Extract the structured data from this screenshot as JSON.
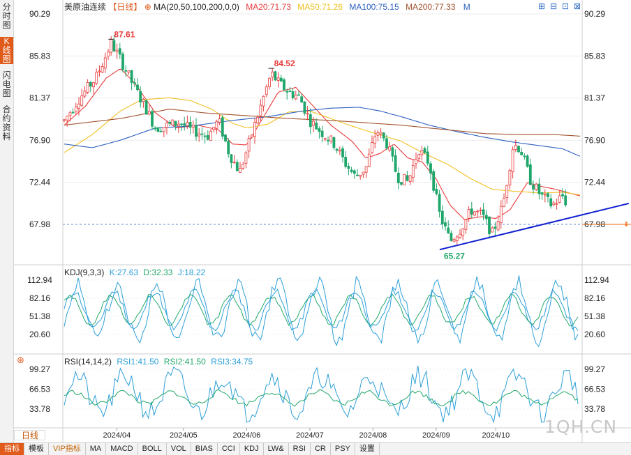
{
  "sidebar": {
    "tabs": [
      {
        "label": "分时图",
        "active": false
      },
      {
        "label": "K线图",
        "active": true
      },
      {
        "label": "闪电图",
        "active": false
      },
      {
        "label": "合约资料",
        "active": false
      }
    ]
  },
  "header": {
    "instrument": "美原油连续",
    "period": "【日线】",
    "ma_label": "MA(20,50,100,200,0,0)",
    "ma20": "MA20:71.73",
    "ma50": "MA50:71.26",
    "ma100": "MA100:75.15",
    "ma200": "MA200:77.33",
    "m_label": "M",
    "colors": {
      "ma20": "#e83b3b",
      "ma50": "#f0c020",
      "ma100": "#2b5fc0",
      "ma200": "#a0522d"
    }
  },
  "controls": {
    "icons": [
      "zoom-in-icon",
      "zoom-out-icon",
      "fit-icon",
      "close-icon"
    ]
  },
  "indicators": {
    "kdj": {
      "label": "KDJ(9,3,3)",
      "k": "K:27.63",
      "d": "D:32.33",
      "j": "J:18.22"
    },
    "rsi": {
      "label": "RSI(14,14,2)",
      "rsi1": "RSI1:41.50",
      "rsi2": "RSI2:41.50",
      "rsi3": "RSI3:34.75"
    }
  },
  "period_tag": "日线",
  "toolbar": {
    "items": [
      "指标",
      "模板",
      "VIP指标",
      "MA",
      "MACD",
      "BOLL",
      "VOL",
      "BIAS",
      "CCI",
      "KDJ",
      "LW&",
      "RSI",
      "CR",
      "PSY",
      "设置"
    ],
    "active_index": 0,
    "vip_index": 2
  },
  "watermark": "1QH.CN",
  "chart_data": [
    {
      "type": "candlestick",
      "title": "美原油连续 日线",
      "x_ticks": [
        "2024/04",
        "2024/05",
        "2024/06",
        "2024/07",
        "2024/08",
        "2024/09",
        "2024/10"
      ],
      "y_ticks": [
        "90.29",
        "85.83",
        "81.37",
        "76.90",
        "72.44",
        "67.98"
      ],
      "ylim": [
        63.5,
        91.5
      ],
      "current_price": 67.98,
      "annotations": [
        {
          "text": "87.61",
          "value": 87.61,
          "kind": "high",
          "date_index": 67
        },
        {
          "text": "84.52",
          "value": 84.52,
          "kind": "high",
          "date_index": 295
        },
        {
          "text": "65.27",
          "value": 65.27,
          "kind": "low",
          "date_index": 535
        }
      ],
      "trendline": {
        "from": {
          "i": 535,
          "v": 65.3
        },
        "to": {
          "i": 735,
          "v": 68.8
        }
      },
      "close_keypoints": [
        [
          0,
          79.0
        ],
        [
          20,
          81.2
        ],
        [
          45,
          83.5
        ],
        [
          60,
          86.0
        ],
        [
          67,
          87.2
        ],
        [
          80,
          85.5
        ],
        [
          100,
          82.5
        ],
        [
          115,
          80.5
        ],
        [
          130,
          78.2
        ],
        [
          150,
          78.5
        ],
        [
          165,
          78.8
        ],
        [
          180,
          78.0
        ],
        [
          205,
          77.4
        ],
        [
          220,
          79.0
        ],
        [
          235,
          75.5
        ],
        [
          250,
          73.5
        ],
        [
          265,
          77.0
        ],
        [
          280,
          80.5
        ],
        [
          295,
          84.0
        ],
        [
          305,
          83.0
        ],
        [
          320,
          82.0
        ],
        [
          335,
          81.5
        ],
        [
          350,
          79.0
        ],
        [
          370,
          77.5
        ],
        [
          385,
          76.5
        ],
        [
          400,
          74.5
        ],
        [
          415,
          73.0
        ],
        [
          430,
          74.0
        ],
        [
          445,
          78.0
        ],
        [
          460,
          76.5
        ],
        [
          475,
          73.0
        ],
        [
          490,
          72.5
        ],
        [
          505,
          76.0
        ],
        [
          520,
          74.5
        ],
        [
          535,
          69.0
        ],
        [
          550,
          66.2
        ],
        [
          565,
          67.5
        ],
        [
          580,
          69.5
        ],
        [
          595,
          69.0
        ],
        [
          610,
          67.0
        ],
        [
          625,
          70.0
        ],
        [
          640,
          76.5
        ],
        [
          650,
          76.0
        ],
        [
          665,
          72.5
        ],
        [
          680,
          71.0
        ],
        [
          695,
          70.0
        ],
        [
          710,
          71.0
        ],
        [
          725,
          69.0
        ],
        [
          735,
          67.8
        ]
      ],
      "ma_series": [
        {
          "name": "MA20",
          "value": 71.73,
          "points": [
            [
              0,
              78.5
            ],
            [
              30,
              80.5
            ],
            [
              60,
              83.5
            ],
            [
              80,
              84.5
            ],
            [
              100,
              83.0
            ],
            [
              130,
              79.8
            ],
            [
              160,
              78.2
            ],
            [
              190,
              78.5
            ],
            [
              220,
              78.0
            ],
            [
              240,
              76.5
            ],
            [
              260,
              76.4
            ],
            [
              285,
              79.5
            ],
            [
              305,
              82.0
            ],
            [
              330,
              82.5
            ],
            [
              355,
              80.5
            ],
            [
              380,
              78.5
            ],
            [
              410,
              76.8
            ],
            [
              430,
              75.0
            ],
            [
              450,
              75.5
            ],
            [
              470,
              76.5
            ],
            [
              490,
              75.0
            ],
            [
              510,
              74.6
            ],
            [
              530,
              72.8
            ],
            [
              550,
              70.0
            ],
            [
              570,
              68.5
            ],
            [
              595,
              68.8
            ],
            [
              615,
              68.6
            ],
            [
              635,
              69.5
            ],
            [
              660,
              72.4
            ],
            [
              680,
              72.0
            ],
            [
              700,
              71.7
            ],
            [
              725,
              71.2
            ],
            [
              735,
              71.0
            ]
          ]
        },
        {
          "name": "MA50",
          "value": 71.26,
          "points": [
            [
              0,
              75.6
            ],
            [
              40,
              77.5
            ],
            [
              80,
              80.0
            ],
            [
              110,
              81.2
            ],
            [
              150,
              81.4
            ],
            [
              180,
              81.1
            ],
            [
              210,
              80.2
            ],
            [
              240,
              78.7
            ],
            [
              260,
              78.2
            ],
            [
              290,
              78.6
            ],
            [
              320,
              79.9
            ],
            [
              350,
              80.0
            ],
            [
              380,
              79.2
            ],
            [
              410,
              78.4
            ],
            [
              440,
              77.7
            ],
            [
              480,
              76.8
            ],
            [
              510,
              75.6
            ],
            [
              545,
              74.4
            ],
            [
              580,
              72.8
            ],
            [
              610,
              71.7
            ],
            [
              640,
              71.5
            ],
            [
              680,
              71.3
            ],
            [
              710,
              71.4
            ],
            [
              735,
              71.1
            ]
          ]
        },
        {
          "name": "MA100",
          "value": 75.15,
          "points": [
            [
              0,
              76.5
            ],
            [
              40,
              76.1
            ],
            [
              80,
              76.9
            ],
            [
              130,
              78.2
            ],
            [
              180,
              78.4
            ],
            [
              240,
              79.0
            ],
            [
              290,
              79.4
            ],
            [
              340,
              80.0
            ],
            [
              380,
              80.3
            ],
            [
              420,
              80.4
            ],
            [
              450,
              80.0
            ],
            [
              480,
              79.4
            ],
            [
              520,
              78.5
            ],
            [
              560,
              77.8
            ],
            [
              600,
              77.2
            ],
            [
              640,
              76.7
            ],
            [
              680,
              76.3
            ],
            [
              710,
              76.0
            ],
            [
              735,
              75.2
            ]
          ]
        },
        {
          "name": "MA200",
          "value": 77.33,
          "points": [
            [
              0,
              78.5
            ],
            [
              80,
              79.2
            ],
            [
              150,
              80.2
            ],
            [
              200,
              79.8
            ],
            [
              260,
              79.5
            ],
            [
              320,
              79.2
            ],
            [
              380,
              79.0
            ],
            [
              440,
              78.7
            ],
            [
              480,
              78.5
            ],
            [
              520,
              78.2
            ],
            [
              560,
              77.9
            ],
            [
              600,
              77.6
            ],
            [
              650,
              77.5
            ],
            [
              700,
              77.5
            ],
            [
              735,
              77.33
            ]
          ]
        }
      ]
    },
    {
      "type": "line",
      "title": "KDJ(9,3,3)",
      "y_ticks": [
        "112.94",
        "82.16",
        "51.38",
        "20.60"
      ],
      "ylim": [
        -5,
        125
      ],
      "series": [
        {
          "name": "K",
          "value": 27.63
        },
        {
          "name": "D",
          "value": 32.33
        },
        {
          "name": "J",
          "value": 18.22
        }
      ]
    },
    {
      "type": "line",
      "title": "RSI(14,14,2)",
      "y_ticks": [
        "99.27",
        "66.53",
        "33.78"
      ],
      "ylim": [
        10,
        110
      ],
      "series": [
        {
          "name": "RSI1",
          "value": 41.5
        },
        {
          "name": "RSI2",
          "value": 41.5
        },
        {
          "name": "RSI3",
          "value": 34.75
        }
      ]
    }
  ]
}
